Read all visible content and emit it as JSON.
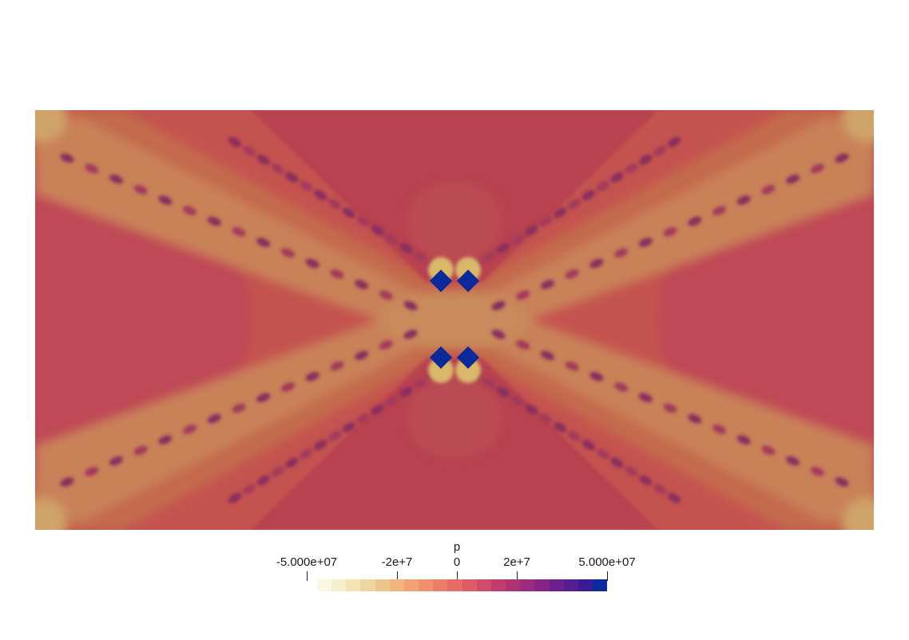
{
  "field": {
    "variable": "p",
    "range": [
      -50000000,
      50000000
    ]
  },
  "colorbar": {
    "title": "p",
    "tick_labels": [
      {
        "text": "-5.000e+07",
        "value": -50000000
      },
      {
        "text": "-2e+7",
        "value": -20000000
      },
      {
        "text": "0",
        "value": 0
      },
      {
        "text": "2e+7",
        "value": 20000000
      },
      {
        "text": "5.000e+07",
        "value": 50000000
      }
    ],
    "colors": [
      "#fdf8e4",
      "#f6efcf",
      "#f2e4b5",
      "#efd69f",
      "#ecc58c",
      "#f0b47c",
      "#f2a274",
      "#f1906d",
      "#ed7d68",
      "#e66b66",
      "#dd5b67",
      "#d14b6a",
      "#c23c6e",
      "#b03276",
      "#9c2a7f",
      "#862387",
      "#6d208d",
      "#541d92",
      "#3a1b96",
      "#0a299c"
    ]
  },
  "colors": {
    "background": "#c4534f",
    "lobe_center": "#c88a5c",
    "lobe_edge": "#c26a4d",
    "sector": "#b8434f",
    "dots": "#0a2a9a",
    "bands": "#8a2f5e"
  }
}
